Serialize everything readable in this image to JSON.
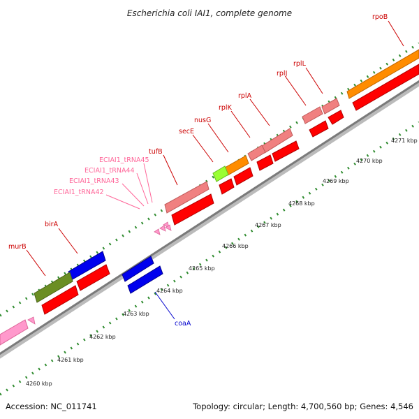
{
  "title": "Escherichia coli IAI1, complete genome",
  "footer": {
    "accession": "Accession: NC_011741",
    "summary": "Topology: circular; Length: 4,700,560 bp; Genes: 4,546"
  },
  "colors": {
    "protein_coding": "#ff0000",
    "ribosomal": "#f08080",
    "trna": "#ff99cc",
    "blue_gene": "#0000ee",
    "olive_gene": "#6b8e23",
    "orange_gene": "#ff8c00",
    "lime_gene": "#99ff33",
    "label_red": "#cc0000",
    "label_pink": "#ff6699",
    "label_blue": "#0000cc",
    "tick_dark": "#006400",
    "tick_light": "#33aa33",
    "backbone": "#999999"
  },
  "scale_labels": [
    "4260 kbp",
    "4261 kbp",
    "4262 kbp",
    "4263 kbp",
    "4264 kbp",
    "4265 kbp",
    "4266 kbp",
    "4267 kbp",
    "4268 kbp",
    "4269 kbp",
    "4270 kbp",
    "4271 kbp"
  ],
  "gene_labels": [
    {
      "text": "rpoB",
      "kind": "red"
    },
    {
      "text": "rplL",
      "kind": "red"
    },
    {
      "text": "rplJ",
      "kind": "red"
    },
    {
      "text": "rplA",
      "kind": "red"
    },
    {
      "text": "rplK",
      "kind": "red"
    },
    {
      "text": "nusG",
      "kind": "red"
    },
    {
      "text": "secE",
      "kind": "red"
    },
    {
      "text": "tufB",
      "kind": "red"
    },
    {
      "text": "ECIAI1_tRNA45",
      "kind": "pink"
    },
    {
      "text": "ECIAI1_tRNA44",
      "kind": "pink"
    },
    {
      "text": "ECIAI1_tRNA43",
      "kind": "pink"
    },
    {
      "text": "ECIAI1_tRNA42",
      "kind": "pink"
    },
    {
      "text": "birA",
      "kind": "red"
    },
    {
      "text": "murB",
      "kind": "red"
    },
    {
      "text": "coaA",
      "kind": "blue"
    }
  ]
}
